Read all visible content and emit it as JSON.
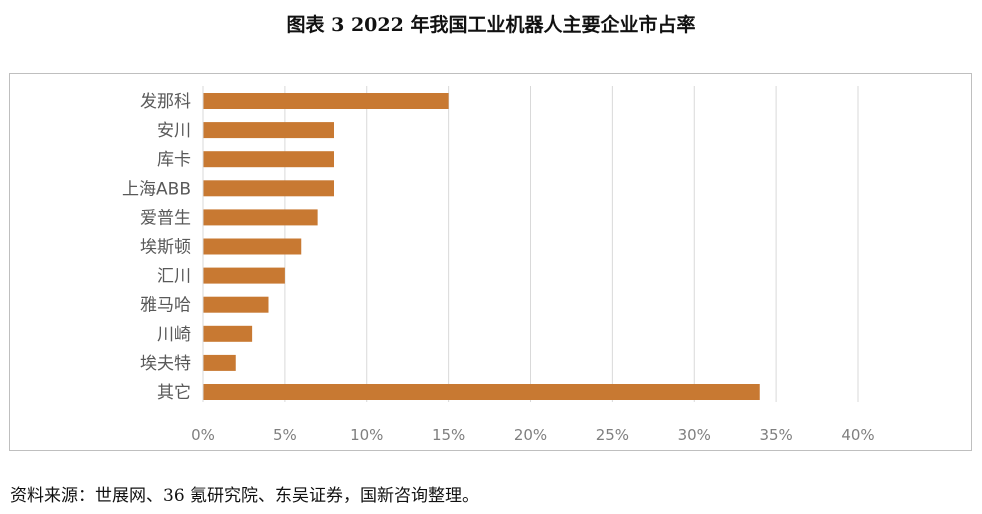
{
  "title": "图表 3 2022 年我国工业机器人主要企业市占率",
  "source": "资料来源：世展网、36 氪研究院、东吴证券，国新咨询整理。",
  "chart_data": {
    "type": "bar",
    "orientation": "horizontal",
    "categories": [
      "发那科",
      "安川",
      "库卡",
      "上海ABB",
      "爱普生",
      "埃斯顿",
      "汇川",
      "雅马哈",
      "川崎",
      "埃夫特",
      "其它"
    ],
    "values": [
      15,
      8,
      8,
      8,
      7,
      6,
      5,
      4,
      3,
      2,
      34
    ],
    "xlim": [
      0,
      40
    ],
    "xticks": [
      "0%",
      "5%",
      "10%",
      "15%",
      "20%",
      "25%",
      "30%",
      "35%",
      "40%"
    ],
    "grid": true,
    "bar_color": "#c87932",
    "grid_color": "#d9d9d9"
  }
}
